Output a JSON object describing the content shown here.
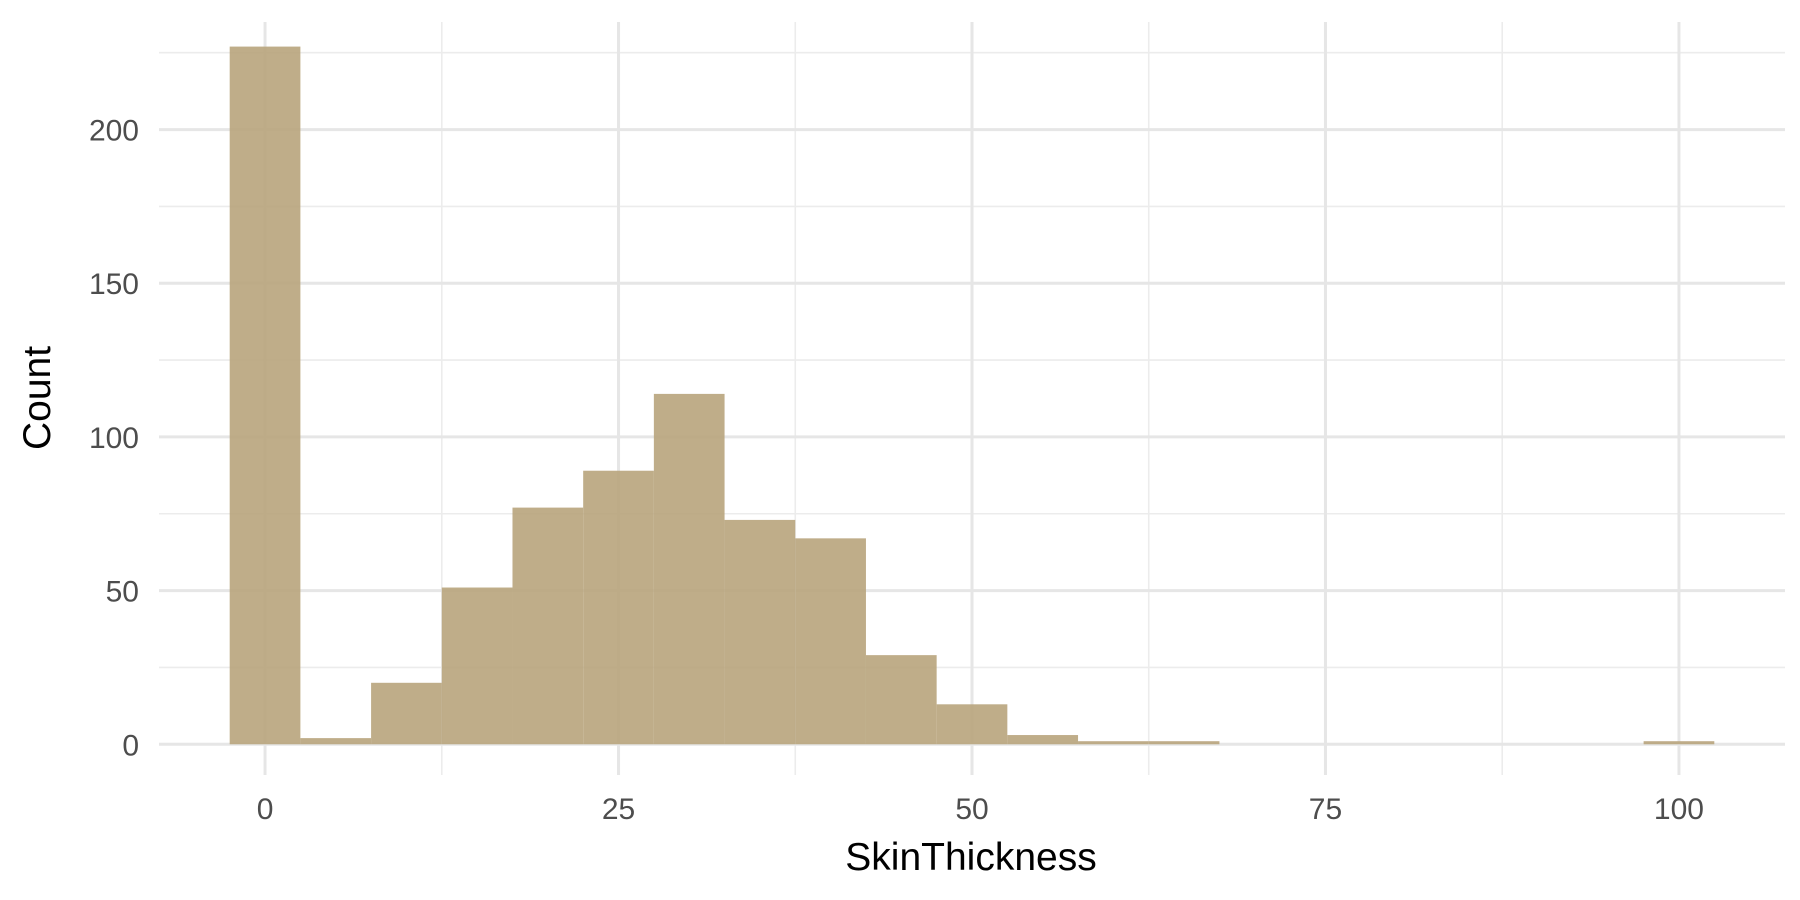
{
  "chart_data": {
    "type": "bar",
    "subtype": "histogram",
    "xlabel": "SkinThickness",
    "ylabel": "Count",
    "bin_width": 5,
    "xlim": [
      -7.5,
      107.5
    ],
    "ylim": [
      -10,
      235
    ],
    "x_ticks": [
      0,
      25,
      50,
      75,
      100
    ],
    "y_ticks": [
      0,
      50,
      100,
      150,
      200
    ],
    "grid": true,
    "bar_color": "#b8a47c",
    "bins": [
      {
        "x0": -2.5,
        "x1": 2.5,
        "count": 227
      },
      {
        "x0": 2.5,
        "x1": 7.5,
        "count": 2
      },
      {
        "x0": 7.5,
        "x1": 12.5,
        "count": 20
      },
      {
        "x0": 12.5,
        "x1": 17.5,
        "count": 51
      },
      {
        "x0": 17.5,
        "x1": 22.5,
        "count": 77
      },
      {
        "x0": 22.5,
        "x1": 27.5,
        "count": 89
      },
      {
        "x0": 27.5,
        "x1": 32.5,
        "count": 114
      },
      {
        "x0": 32.5,
        "x1": 37.5,
        "count": 73
      },
      {
        "x0": 37.5,
        "x1": 42.5,
        "count": 67
      },
      {
        "x0": 42.5,
        "x1": 47.5,
        "count": 29
      },
      {
        "x0": 47.5,
        "x1": 52.5,
        "count": 13
      },
      {
        "x0": 52.5,
        "x1": 57.5,
        "count": 3
      },
      {
        "x0": 57.5,
        "x1": 62.5,
        "count": 1
      },
      {
        "x0": 62.5,
        "x1": 67.5,
        "count": 1
      },
      {
        "x0": 67.5,
        "x1": 72.5,
        "count": 0
      },
      {
        "x0": 72.5,
        "x1": 77.5,
        "count": 0
      },
      {
        "x0": 77.5,
        "x1": 82.5,
        "count": 0
      },
      {
        "x0": 82.5,
        "x1": 87.5,
        "count": 0
      },
      {
        "x0": 87.5,
        "x1": 92.5,
        "count": 0
      },
      {
        "x0": 92.5,
        "x1": 97.5,
        "count": 0
      },
      {
        "x0": 97.5,
        "x1": 102.5,
        "count": 1
      }
    ]
  }
}
